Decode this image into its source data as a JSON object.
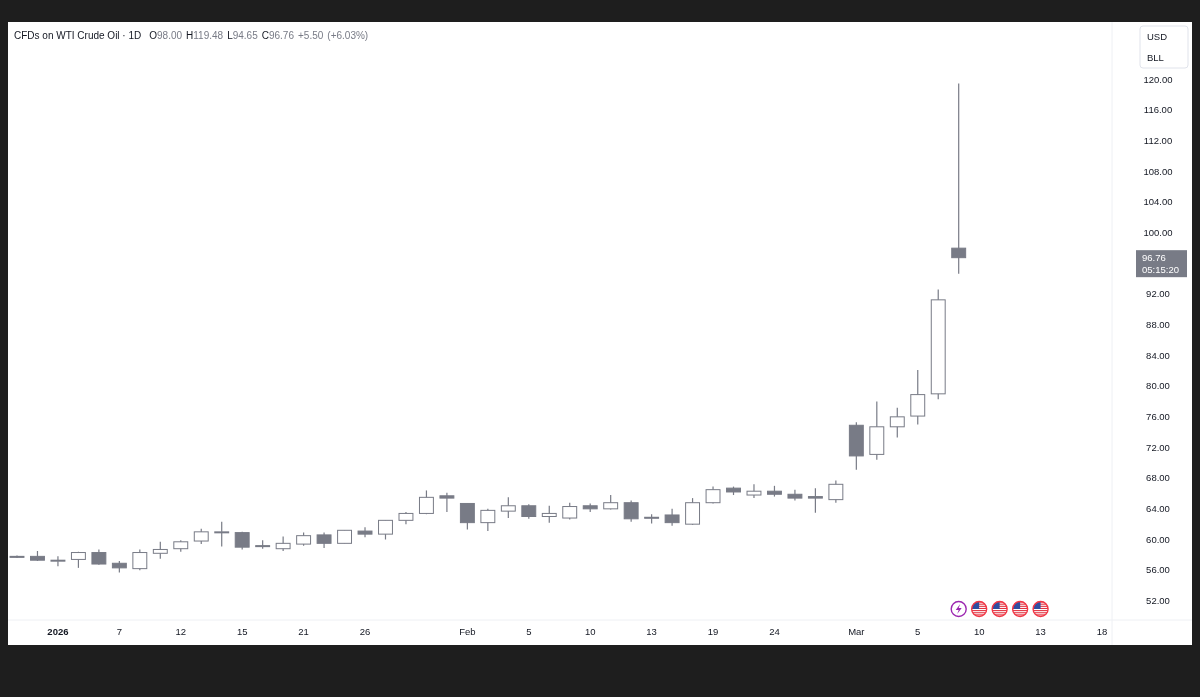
{
  "chart_data": {
    "type": "candlestick",
    "title": "CFDs on WTI Crude Oil · 1D",
    "subtitle": "O98.00 H119.48 L94.65 C96.76 +5.50 (+6.03%)",
    "categories": [
      null,
      null,
      "2026",
      null,
      null,
      "7",
      null,
      null,
      "12",
      null,
      null,
      "15",
      null,
      null,
      "21",
      null,
      null,
      "26",
      null,
      null,
      null,
      null,
      "Feb",
      null,
      null,
      "5",
      null,
      null,
      "10",
      null,
      null,
      "13",
      null,
      null,
      "19",
      null,
      null,
      "24",
      null,
      null,
      null,
      "Mar",
      null,
      null,
      "5",
      null,
      null,
      "10",
      null,
      null,
      "13",
      null,
      null,
      "18"
    ],
    "ohlc": [
      [
        57.8,
        57.9,
        57.6,
        57.7
      ],
      [
        57.8,
        58.5,
        57.2,
        57.3
      ],
      [
        57.2,
        57.8,
        56.5,
        57.3
      ],
      [
        57.4,
        58.4,
        56.3,
        58.3
      ],
      [
        58.3,
        58.7,
        56.7,
        56.8
      ],
      [
        56.9,
        57.2,
        55.7,
        56.3
      ],
      [
        56.2,
        58.7,
        56.0,
        58.3
      ],
      [
        58.2,
        59.7,
        57.5,
        58.7
      ],
      [
        58.8,
        59.9,
        58.4,
        59.7
      ],
      [
        59.8,
        61.4,
        59.4,
        61.0
      ],
      [
        60.9,
        62.3,
        59.1,
        61.0
      ],
      [
        60.9,
        61.0,
        58.7,
        59.0
      ],
      [
        59.2,
        59.9,
        58.8,
        59.1
      ],
      [
        58.8,
        60.4,
        58.5,
        59.5
      ],
      [
        59.4,
        60.9,
        59.2,
        60.5
      ],
      [
        60.6,
        60.9,
        58.9,
        59.5
      ],
      [
        59.5,
        61.2,
        59.5,
        61.2
      ],
      [
        61.1,
        61.6,
        60.3,
        60.7
      ],
      [
        60.7,
        62.5,
        60.0,
        62.5
      ],
      [
        62.5,
        63.6,
        62.0,
        63.4
      ],
      [
        63.4,
        66.4,
        63.3,
        65.5
      ],
      [
        65.7,
        66.1,
        63.6,
        65.4
      ],
      [
        64.7,
        64.7,
        61.3,
        62.2
      ],
      [
        62.2,
        64.0,
        61.1,
        63.8
      ],
      [
        63.7,
        65.5,
        62.8,
        64.4
      ],
      [
        64.4,
        64.6,
        62.7,
        63.0
      ],
      [
        63.0,
        64.4,
        62.2,
        63.4
      ],
      [
        62.8,
        64.8,
        62.6,
        64.3
      ],
      [
        64.4,
        64.7,
        63.6,
        64.0
      ],
      [
        64.0,
        65.8,
        63.9,
        64.8
      ],
      [
        64.8,
        65.1,
        62.3,
        62.7
      ],
      [
        62.9,
        63.3,
        62.1,
        62.8
      ],
      [
        63.2,
        64.0,
        61.8,
        62.2
      ],
      [
        62.0,
        65.4,
        61.9,
        64.8
      ],
      [
        64.8,
        66.9,
        64.7,
        66.5
      ],
      [
        66.7,
        66.9,
        65.8,
        66.2
      ],
      [
        65.8,
        67.2,
        65.4,
        66.3
      ],
      [
        66.3,
        67.0,
        65.6,
        65.9
      ],
      [
        65.9,
        66.5,
        65.1,
        65.4
      ],
      [
        65.6,
        66.7,
        63.5,
        65.4
      ],
      [
        65.2,
        67.7,
        64.8,
        67.2
      ],
      [
        74.9,
        75.3,
        69.1,
        70.9
      ],
      [
        71.1,
        78.0,
        70.4,
        74.7
      ],
      [
        74.7,
        77.2,
        73.3,
        76.0
      ],
      [
        76.1,
        82.1,
        75.0,
        78.9
      ],
      [
        79.0,
        92.6,
        78.3,
        91.26
      ],
      [
        98.0,
        119.48,
        94.65,
        96.76
      ],
      null,
      null,
      null,
      null,
      null,
      null,
      null
    ],
    "color": "#787b86",
    "ylim": [
      49.5,
      127.5
    ],
    "yticks": [
      {
        "value": 52,
        "label": "52.00"
      },
      {
        "value": 56,
        "label": "56.00"
      },
      {
        "value": 60,
        "label": "60.00"
      },
      {
        "value": 64,
        "label": "64.00"
      },
      {
        "value": 68,
        "label": "68.00"
      },
      {
        "value": 72,
        "label": "72.00"
      },
      {
        "value": 76,
        "label": "76.00"
      },
      {
        "value": 80,
        "label": "80.00"
      },
      {
        "value": 84,
        "label": "84.00"
      },
      {
        "value": 88,
        "label": "88.00"
      },
      {
        "value": 92,
        "label": "92.00"
      },
      {
        "value": 100,
        "label": "100.00"
      },
      {
        "value": 104,
        "label": "104.00"
      },
      {
        "value": 108,
        "label": "108.00"
      },
      {
        "value": 112,
        "label": "112.00"
      },
      {
        "value": 116,
        "label": "116.00"
      },
      {
        "value": 120,
        "label": "120.00"
      }
    ],
    "annotations": [
      "USD",
      "BLL",
      "96.76",
      "05:15:20"
    ]
  }
}
